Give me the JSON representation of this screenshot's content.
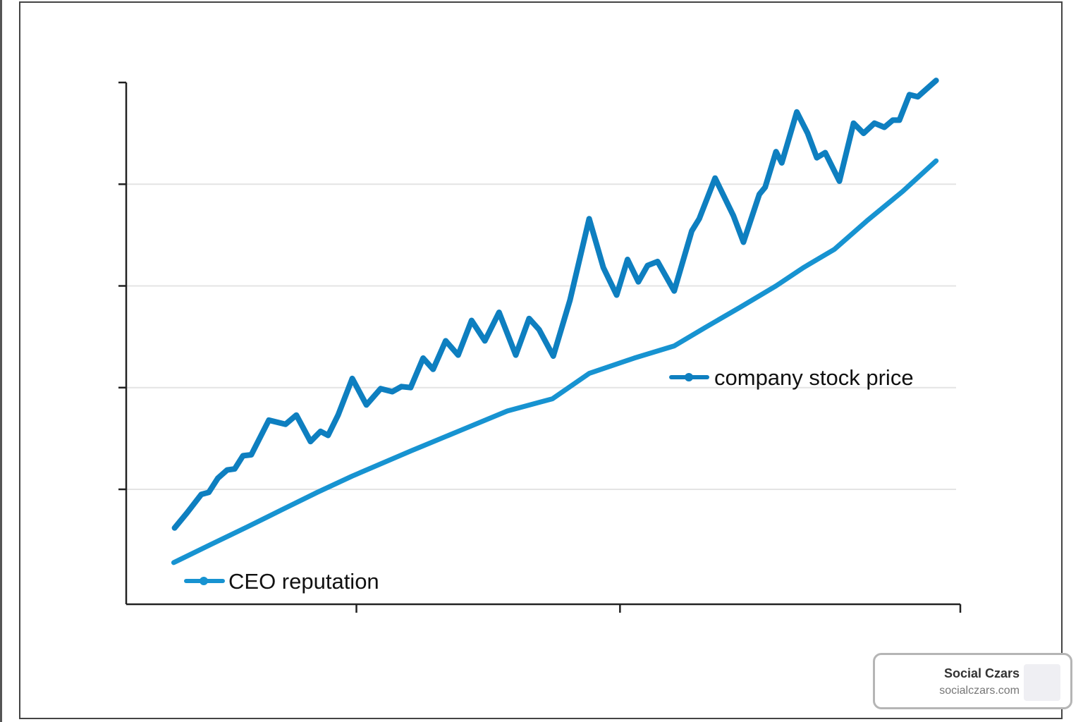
{
  "chart_data": {
    "type": "line",
    "title": "",
    "xlabel": "",
    "ylabel": "",
    "xlim": [
      0,
      100
    ],
    "ylim": [
      -0.13,
      5.0
    ],
    "xticks": [
      27.6,
      59.2,
      100
    ],
    "yticks": [
      1,
      2,
      3,
      4,
      5
    ],
    "grid": "horizontal",
    "legend": "inline labels near lines",
    "series": [
      {
        "name": "company stock price",
        "color": "#0e7fc0",
        "x": [
          5.8,
          7.3,
          9.0,
          9.9,
          11.0,
          12.1,
          13.0,
          14.0,
          15.0,
          17.1,
          19.1,
          20.4,
          22.1,
          23.3,
          24.2,
          25.4,
          27.1,
          28.8,
          30.5,
          31.9,
          33.0,
          34.1,
          35.6,
          36.8,
          38.3,
          39.8,
          41.4,
          43.0,
          44.7,
          46.7,
          48.3,
          49.5,
          51.2,
          53.2,
          55.5,
          57.2,
          58.8,
          60.1,
          61.4,
          62.5,
          63.7,
          65.7,
          67.8,
          68.7,
          70.6,
          72.8,
          74.0,
          75.9,
          76.6,
          77.9,
          78.6,
          80.4,
          81.7,
          82.8,
          83.8,
          85.5,
          87.2,
          88.4,
          89.7,
          90.9,
          91.9,
          92.7,
          93.9,
          94.9,
          97.1
        ],
        "y": [
          0.62,
          0.77,
          0.95,
          0.97,
          1.11,
          1.19,
          1.2,
          1.33,
          1.34,
          1.68,
          1.64,
          1.73,
          1.47,
          1.57,
          1.53,
          1.73,
          2.09,
          1.83,
          1.99,
          1.96,
          2.01,
          2.0,
          2.29,
          2.18,
          2.46,
          2.32,
          2.66,
          2.46,
          2.74,
          2.32,
          2.68,
          2.57,
          2.31,
          2.86,
          3.66,
          3.18,
          2.91,
          3.26,
          3.04,
          3.2,
          3.24,
          2.95,
          3.54,
          3.66,
          4.06,
          3.69,
          3.43,
          3.9,
          3.97,
          4.32,
          4.21,
          4.71,
          4.5,
          4.26,
          4.31,
          4.03,
          4.6,
          4.5,
          4.6,
          4.56,
          4.63,
          4.63,
          4.88,
          4.86,
          5.02
        ]
      },
      {
        "name": "CEO reputation",
        "color": "#1793d1",
        "x": [
          5.7,
          10.2,
          14.5,
          18.7,
          22.9,
          27.1,
          34.2,
          39.8,
          45.7,
          51.1,
          55.5,
          60.9,
          65.7,
          69.4,
          73.6,
          77.9,
          81.2,
          84.9,
          88.8,
          93.1,
          97.1
        ],
        "y": [
          0.28,
          0.46,
          0.63,
          0.8,
          0.97,
          1.13,
          1.38,
          1.57,
          1.77,
          1.89,
          2.14,
          2.29,
          2.41,
          2.59,
          2.79,
          3.0,
          3.18,
          3.36,
          3.64,
          3.93,
          4.23
        ]
      }
    ]
  },
  "watermark": {
    "title": "Social Czars",
    "url": "socialczars.com"
  }
}
